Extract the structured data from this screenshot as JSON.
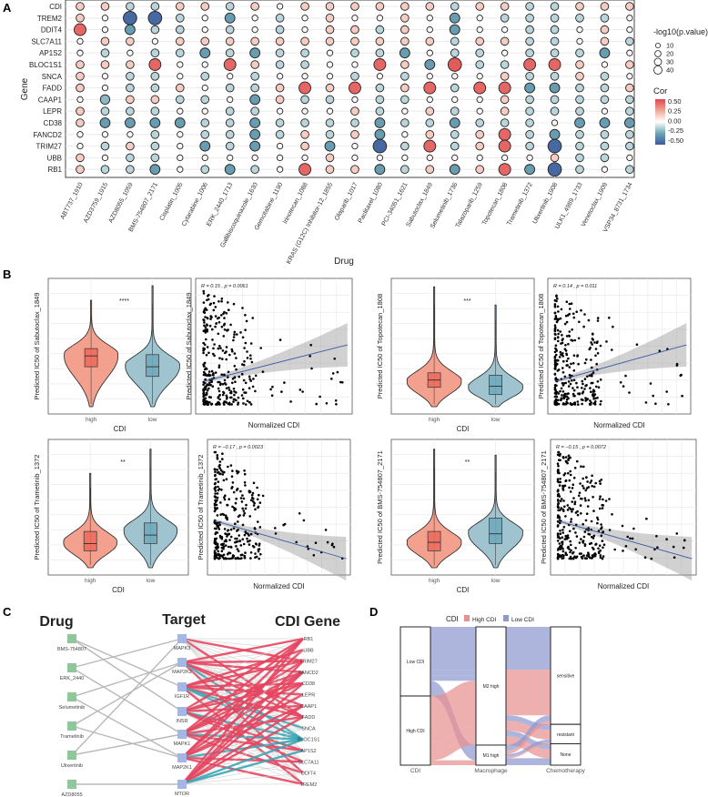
{
  "chart_data": [
    {
      "panel": "A",
      "type": "scatter",
      "subtype": "dot-matrix",
      "xlabel": "Drug",
      "ylabel": "Gene",
      "genes": [
        "CDI",
        "TREM2",
        "DDIT4",
        "SLC7A11",
        "AP1S2",
        "BLOC1S1",
        "SNCA",
        "FADD",
        "CAAP1",
        "LEPR",
        "CD38",
        "FANCD2",
        "TRIM27",
        "UBB",
        "RB1"
      ],
      "drugs": [
        "ABT737_1910",
        "AZD3759_1915",
        "AZD8055_1059",
        "BMS-754807_2171",
        "Cisplatin_1005",
        "Cytarabine_1006",
        "ERK_2440_1713",
        "Gallibiscoquinazole_1630",
        "Gemcitabine_1190",
        "Irinotecan_1088",
        "KRAS (G12C) Inhibitor-12_1855",
        "Olaparib_1017",
        "Paclitaxel_1080",
        "PCI-34051_1621",
        "Sabutoclax_1849",
        "Selumetinib_1736",
        "Talazoparib_1259",
        "Topotecan_1808",
        "Trametinib_1372",
        "Ulixertinib_1908",
        "ULK1_4989_1733",
        "Venetoclax_1909",
        "VSP34_8731_1734"
      ],
      "cor": [
        [
          0.15,
          0.15,
          -0.12,
          -0.12,
          0.15,
          0.15,
          -0.12,
          0.15,
          0.02,
          0.15,
          0.15,
          0.15,
          0.15,
          0.15,
          0.15,
          -0.12,
          0.15,
          0.15,
          -0.12,
          -0.12,
          0.15,
          0.15,
          0.15
        ],
        [
          0.15,
          0.02,
          -0.45,
          -0.45,
          -0.12,
          0.02,
          -0.28,
          0.02,
          -0.12,
          0.02,
          0.15,
          0.02,
          0.02,
          0.15,
          0.02,
          -0.28,
          0.02,
          -0.12,
          -0.12,
          -0.12,
          -0.12,
          -0.12,
          0.02
        ],
        [
          0.42,
          0.02,
          -0.28,
          -0.12,
          -0.12,
          0.02,
          -0.12,
          0.02,
          -0.12,
          0.02,
          0.15,
          0.15,
          -0.12,
          0.15,
          0.02,
          -0.28,
          0.02,
          0.02,
          -0.12,
          -0.12,
          0.02,
          0.15,
          0.02
        ],
        [
          0.02,
          0.15,
          0.15,
          0.02,
          0.15,
          0.15,
          0.15,
          0.15,
          0.15,
          0.15,
          0.15,
          0.15,
          0.15,
          0.15,
          0.15,
          -0.12,
          0.15,
          0.15,
          -0.12,
          -0.12,
          0.02,
          0.15,
          -0.12
        ],
        [
          0.02,
          -0.12,
          0.02,
          -0.12,
          -0.12,
          -0.28,
          -0.12,
          -0.28,
          -0.12,
          -0.12,
          0.02,
          -0.12,
          -0.12,
          -0.28,
          0.02,
          -0.12,
          -0.12,
          0.02,
          -0.12,
          -0.12,
          -0.12,
          -0.28,
          0.02
        ],
        [
          0.15,
          0.15,
          0.15,
          0.42,
          0.02,
          0.02,
          0.42,
          0.15,
          -0.12,
          -0.12,
          0.02,
          0.02,
          0.42,
          0.15,
          -0.28,
          0.45,
          -0.12,
          -0.12,
          0.42,
          0.42,
          0.15,
          0.02,
          0.15
        ],
        [
          0.15,
          0.02,
          -0.12,
          -0.12,
          0.02,
          -0.12,
          0.02,
          -0.12,
          0.02,
          0.02,
          0.02,
          -0.12,
          0.02,
          -0.12,
          0.02,
          0.02,
          0.02,
          0.15,
          -0.12,
          -0.12,
          0.15,
          -0.12,
          0.02
        ],
        [
          0.15,
          0.02,
          -0.12,
          -0.12,
          0.15,
          0.02,
          -0.12,
          -0.12,
          0.15,
          0.42,
          0.15,
          0.42,
          -0.12,
          0.15,
          0.42,
          -0.12,
          0.42,
          0.42,
          -0.28,
          -0.28,
          -0.12,
          -0.12,
          0.15
        ],
        [
          0.02,
          -0.2,
          0.15,
          0.15,
          -0.12,
          -0.12,
          0.02,
          -0.28,
          0.15,
          -0.12,
          -0.12,
          0.02,
          -0.12,
          -0.12,
          0.02,
          0.02,
          0.02,
          0.15,
          -0.12,
          -0.12,
          -0.12,
          -0.12,
          -0.12
        ],
        [
          0.15,
          -0.12,
          -0.12,
          -0.12,
          0.02,
          0.02,
          -0.12,
          -0.12,
          0.02,
          0.02,
          0.02,
          0.15,
          -0.12,
          0.02,
          0.15,
          -0.12,
          0.02,
          0.15,
          -0.12,
          -0.12,
          -0.12,
          0.02,
          -0.12
        ],
        [
          0.15,
          -0.28,
          -0.28,
          -0.28,
          -0.28,
          -0.12,
          -0.12,
          -0.28,
          -0.12,
          -0.12,
          -0.12,
          -0.12,
          -0.28,
          -0.12,
          -0.12,
          -0.28,
          -0.12,
          -0.12,
          -0.12,
          0.02,
          -0.28,
          -0.28,
          -0.28
        ],
        [
          0.02,
          0.02,
          0.02,
          -0.12,
          0.02,
          -0.12,
          -0.12,
          -0.28,
          -0.12,
          0.15,
          -0.12,
          0.15,
          -0.28,
          0.02,
          0.15,
          -0.12,
          0.15,
          0.42,
          -0.12,
          -0.28,
          -0.12,
          -0.12,
          -0.12
        ],
        [
          0.02,
          -0.12,
          0.15,
          -0.12,
          0.02,
          -0.28,
          -0.12,
          -0.28,
          0.02,
          0.15,
          -0.28,
          0.02,
          -0.45,
          -0.12,
          0.42,
          -0.12,
          0.15,
          0.42,
          -0.12,
          -0.45,
          -0.12,
          -0.12,
          -0.12
        ],
        [
          0.15,
          0.02,
          -0.12,
          -0.12,
          0.02,
          0.02,
          0.02,
          0.02,
          0.02,
          0.02,
          0.15,
          0.02,
          0.02,
          0.02,
          0.02,
          0.02,
          0.02,
          0.02,
          0.02,
          0.15,
          -0.12,
          -0.12,
          0.02
        ],
        [
          0.15,
          -0.12,
          -0.12,
          -0.28,
          0.02,
          -0.12,
          -0.28,
          -0.12,
          0.02,
          0.42,
          0.15,
          0.15,
          -0.28,
          -0.12,
          0.15,
          -0.28,
          0.15,
          0.42,
          -0.28,
          -0.45,
          -0.12,
          0.02,
          -0.12
        ]
      ],
      "neg_log10_p": [
        [
          10,
          10,
          10,
          10,
          10,
          10,
          10,
          10,
          4,
          10,
          10,
          10,
          10,
          10,
          10,
          10,
          10,
          10,
          10,
          10,
          10,
          10,
          10
        ],
        [
          10,
          4,
          38,
          38,
          10,
          4,
          18,
          4,
          10,
          4,
          10,
          4,
          4,
          10,
          4,
          18,
          4,
          10,
          10,
          10,
          10,
          10,
          4
        ],
        [
          28,
          4,
          18,
          10,
          10,
          4,
          10,
          4,
          10,
          4,
          10,
          10,
          10,
          10,
          4,
          18,
          4,
          4,
          10,
          10,
          4,
          10,
          4
        ],
        [
          4,
          10,
          10,
          4,
          10,
          10,
          10,
          10,
          10,
          10,
          10,
          10,
          10,
          10,
          10,
          10,
          10,
          10,
          10,
          10,
          4,
          10,
          10
        ],
        [
          4,
          10,
          4,
          10,
          10,
          18,
          10,
          18,
          10,
          10,
          4,
          10,
          10,
          18,
          4,
          10,
          10,
          4,
          10,
          10,
          10,
          18,
          4
        ],
        [
          10,
          10,
          10,
          28,
          4,
          4,
          28,
          10,
          10,
          10,
          4,
          4,
          28,
          10,
          18,
          38,
          10,
          10,
          28,
          28,
          10,
          4,
          10
        ],
        [
          10,
          4,
          10,
          10,
          4,
          10,
          4,
          10,
          4,
          4,
          4,
          10,
          4,
          10,
          4,
          4,
          4,
          10,
          10,
          10,
          10,
          10,
          4
        ],
        [
          10,
          4,
          10,
          10,
          10,
          4,
          10,
          10,
          10,
          28,
          10,
          28,
          10,
          10,
          28,
          10,
          28,
          28,
          18,
          18,
          10,
          10,
          10
        ],
        [
          4,
          16,
          10,
          10,
          10,
          10,
          4,
          18,
          10,
          10,
          10,
          4,
          10,
          10,
          4,
          4,
          4,
          10,
          10,
          10,
          10,
          10,
          10
        ],
        [
          10,
          10,
          10,
          10,
          4,
          4,
          10,
          10,
          4,
          4,
          4,
          10,
          10,
          4,
          10,
          10,
          4,
          10,
          10,
          10,
          10,
          4,
          10
        ],
        [
          10,
          18,
          18,
          18,
          18,
          10,
          10,
          18,
          10,
          10,
          10,
          10,
          18,
          10,
          10,
          18,
          10,
          10,
          10,
          4,
          18,
          18,
          18
        ],
        [
          4,
          4,
          4,
          10,
          4,
          10,
          10,
          18,
          10,
          10,
          10,
          10,
          18,
          4,
          10,
          10,
          10,
          28,
          10,
          18,
          10,
          10,
          10
        ],
        [
          4,
          10,
          10,
          10,
          4,
          18,
          10,
          18,
          4,
          10,
          18,
          4,
          38,
          10,
          28,
          10,
          10,
          28,
          10,
          38,
          10,
          10,
          10
        ],
        [
          10,
          4,
          10,
          10,
          4,
          4,
          4,
          4,
          4,
          4,
          10,
          4,
          4,
          4,
          4,
          4,
          4,
          4,
          4,
          10,
          10,
          10,
          4
        ],
        [
          10,
          10,
          10,
          18,
          4,
          10,
          18,
          10,
          4,
          28,
          10,
          10,
          18,
          10,
          10,
          18,
          10,
          28,
          18,
          38,
          10,
          4,
          10
        ]
      ],
      "size_legend": {
        "title": "-log10(p.value)",
        "values": [
          10,
          20,
          30,
          40
        ],
        "labels": [
          "10",
          "20",
          "30",
          "40"
        ]
      },
      "color_legend": {
        "title": "Cor",
        "range": [
          -0.5,
          0.5
        ],
        "ticks": [
          "0.50",
          "0.25",
          "0.00",
          "-0.25",
          "-0.50"
        ],
        "colors": {
          "high": "#e0474c",
          "mid": "#ffffff",
          "low": "#3c5a9e"
        }
      },
      "grid": true
    },
    {
      "panel": "B",
      "type": "violin+scatter",
      "groups": [
        "high",
        "low"
      ],
      "group_colors": {
        "high": "#f4a08f",
        "low": "#9fc4d0"
      },
      "violin_xlabel": "CDI",
      "scatter_xlabel": "Normalized CDI",
      "plots": [
        {
          "drug": "Sabutoclax_1849",
          "ylabel": "Predicted IC50 of Sabutoclax_1849",
          "significance": "****",
          "annotation": "R = 0.15 , p = 0.0061",
          "R": 0.15,
          "p": 0.0061
        },
        {
          "drug": "Topotecan_1808",
          "ylabel": "Predicted IC50 of Topotecan_1808",
          "significance": "***",
          "annotation": "R = 0.14 , p = 0.011",
          "R": 0.14,
          "p": 0.011
        },
        {
          "drug": "Trametinib_1372",
          "ylabel": "Predicted IC50 of Trametinib_1372",
          "significance": "**",
          "annotation": "R = −0.17 , p = 0.0023",
          "R": -0.17,
          "p": 0.0023
        },
        {
          "drug": "BMS-754807_2171",
          "ylabel": "Predicted IC50 of BMS-754807_2171",
          "significance": "**",
          "annotation": "R = −0.15 , p = 0.0072",
          "R": -0.15,
          "p": 0.0072
        }
      ]
    },
    {
      "panel": "C",
      "type": "network",
      "column_titles": [
        "Drug",
        "Target",
        "CDI Gene"
      ],
      "drugs": [
        "BMS-754807",
        "ERK_2440",
        "Selumetinib",
        "Trametinib",
        "Ulixertinib",
        "AZD8055"
      ],
      "targets": [
        "MAPK3",
        "MAP2K2",
        "IGF1R",
        "INSR",
        "MAPK1",
        "MAP2K1",
        "MTOR"
      ],
      "genes": [
        "RB1",
        "UBB",
        "TRIM27",
        "FANCD2",
        "CD38",
        "LEPR",
        "CAAP1",
        "FADD",
        "SNCA",
        "BLOC1S1",
        "AP1S2",
        "SLC7A11",
        "DDIT4",
        "TREM2"
      ],
      "drug_target_edges": [
        [
          "BMS-754807",
          "IGF1R"
        ],
        [
          "BMS-754807",
          "INSR"
        ],
        [
          "ERK_2440",
          "MAPK3"
        ],
        [
          "ERK_2440",
          "MAPK1"
        ],
        [
          "Selumetinib",
          "MAP2K2"
        ],
        [
          "Selumetinib",
          "MAP2K1"
        ],
        [
          "Trametinib",
          "MAP2K2"
        ],
        [
          "Trametinib",
          "MAP2K1"
        ],
        [
          "Ulixertinib",
          "MAPK3"
        ],
        [
          "Ulixertinib",
          "MAPK1"
        ],
        [
          "AZD8055",
          "MTOR"
        ]
      ],
      "target_gene_positive": {
        "MAPK3": [
          "TRIM27",
          "FADD"
        ],
        "MAP2K2": [
          "RB1",
          "TRIM27",
          "FANCD2",
          "CAAP1",
          "FADD",
          "DDIT4"
        ],
        "IGF1R": [
          "UBB",
          "TRIM27",
          "CD38",
          "LEPR",
          "FADD",
          "TREM2"
        ],
        "INSR": [
          "RB1",
          "FANCD2",
          "CD38",
          "CAAP1",
          "AP1S2",
          "SLC7A11"
        ],
        "MAPK1": [
          "RB1",
          "TRIM27",
          "FANCD2",
          "CD38",
          "FADD",
          "AP1S2",
          "DDIT4"
        ],
        "MAP2K1": [
          "RB1",
          "UBB",
          "FANCD2",
          "LEPR",
          "CAAP1",
          "SLC7A11",
          "TREM2"
        ],
        "MTOR": [
          "RB1",
          "TRIM27",
          "FANCD2",
          "CD38",
          "CAAP1",
          "FADD"
        ]
      },
      "target_gene_negative": {
        "MAPK3": [],
        "MAP2K2": [
          "BLOC1S1"
        ],
        "IGF1R": [
          "BLOC1S1",
          "SNCA"
        ],
        "INSR": [
          "BLOC1S1"
        ],
        "MAPK1": [
          "BLOC1S1"
        ],
        "MAP2K1": [
          "BLOC1S1"
        ],
        "MTOR": [
          "BLOC1S1",
          "AP1S2"
        ]
      },
      "colors": {
        "drug": "#8fc79a",
        "target": "#a4b6e6",
        "positive": "#e5455f",
        "negative": "#3aa5b5",
        "weak": "#c8c8c8"
      }
    },
    {
      "panel": "D",
      "type": "alluvial",
      "legend_title": "CDI",
      "legend": [
        {
          "label": "High CDI",
          "color": "#e89090"
        },
        {
          "label": "Low CDI",
          "color": "#8e98d0"
        }
      ],
      "axes": [
        {
          "label": "CDI",
          "strata": [
            {
              "label": "Low CDI",
              "value": 0.5
            },
            {
              "label": "High CDI",
              "value": 0.5
            }
          ]
        },
        {
          "label": "Macrophage",
          "strata": [
            {
              "label": "M2 high",
              "value": 0.855
            },
            {
              "label": "M1 high",
              "value": 0.145
            }
          ]
        },
        {
          "label": "Chemotherapy",
          "strata": [
            {
              "label": "sensitive",
              "value": 0.705
            },
            {
              "label": "resistant",
              "value": 0.14
            },
            {
              "label": "None",
              "value": 0.155
            }
          ]
        }
      ],
      "flows": [
        {
          "cdi": "Low CDI",
          "macrophage": "M2 high",
          "chemotherapy": "sensitive",
          "value": 0.31
        },
        {
          "cdi": "Low CDI",
          "macrophage": "M2 high",
          "chemotherapy": "resistant",
          "value": 0.04
        },
        {
          "cdi": "Low CDI",
          "macrophage": "M2 high",
          "chemotherapy": "None",
          "value": 0.04
        },
        {
          "cdi": "Low CDI",
          "macrophage": "M1 high",
          "chemotherapy": "sensitive",
          "value": 0.04
        },
        {
          "cdi": "Low CDI",
          "macrophage": "M1 high",
          "chemotherapy": "resistant",
          "value": 0.02
        },
        {
          "cdi": "Low CDI",
          "macrophage": "M1 high",
          "chemotherapy": "None",
          "value": 0.05
        },
        {
          "cdi": "High CDI",
          "macrophage": "M2 high",
          "chemotherapy": "sensitive",
          "value": 0.33
        },
        {
          "cdi": "High CDI",
          "macrophage": "M2 high",
          "chemotherapy": "resistant",
          "value": 0.07
        },
        {
          "cdi": "High CDI",
          "macrophage": "M2 high",
          "chemotherapy": "None",
          "value": 0.065
        },
        {
          "cdi": "High CDI",
          "macrophage": "M1 high",
          "chemotherapy": "sensitive",
          "value": 0.025
        },
        {
          "cdi": "High CDI",
          "macrophage": "M1 high",
          "chemotherapy": "resistant",
          "value": 0.01
        }
      ]
    }
  ],
  "panel_labels": [
    "A",
    "B",
    "C",
    "D"
  ]
}
